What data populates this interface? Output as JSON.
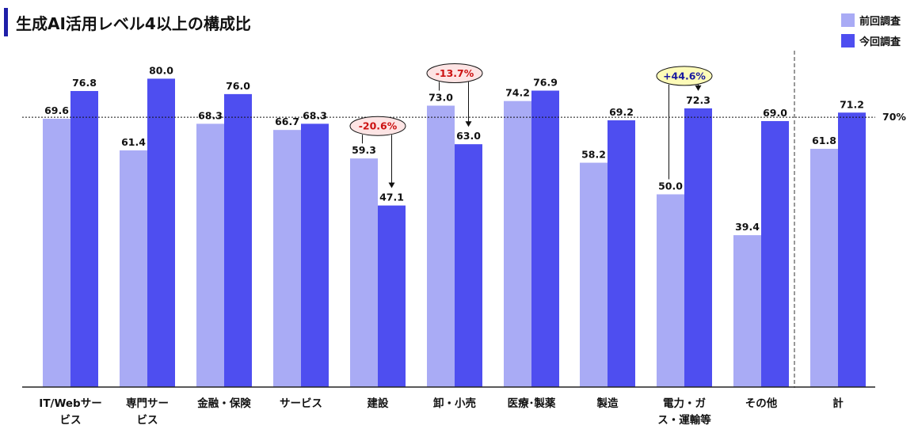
{
  "title": "生成AI活用レベル4以上の構成比",
  "legend": [
    {
      "label": "前回調査",
      "color": "#a9abf5"
    },
    {
      "label": "今回調査",
      "color": "#4e4ef0"
    }
  ],
  "chart_data": {
    "type": "bar",
    "categories": [
      [
        "IT/Webサー",
        "ビス"
      ],
      [
        "専門サー",
        "ビス"
      ],
      [
        "金融・保険"
      ],
      [
        "サービス"
      ],
      [
        "建設"
      ],
      [
        "卸・小売"
      ],
      [
        "医療･製薬"
      ],
      [
        "製造"
      ],
      [
        "電力・ガ",
        "ス・運輸等"
      ],
      [
        "その他"
      ],
      [
        "計"
      ]
    ],
    "series": [
      {
        "name": "前回調査",
        "values": [
          69.6,
          61.4,
          68.3,
          66.7,
          59.3,
          73.0,
          74.2,
          58.2,
          50.0,
          39.4,
          61.8
        ],
        "labels": [
          "69.6",
          "61.4",
          "68.3",
          "66.7",
          "59.3",
          "73.0",
          "74.2",
          "58.2",
          "50.0",
          "39.4",
          "61.8"
        ]
      },
      {
        "name": "今回調査",
        "values": [
          76.8,
          80.0,
          76.0,
          68.3,
          47.1,
          63.0,
          76.9,
          69.2,
          72.3,
          69.0,
          71.2
        ],
        "labels": [
          "76.8",
          "80.0",
          "76.0",
          "68.3",
          "47.1",
          "63.0",
          "76.9",
          "69.2",
          "72.3",
          "69.0",
          "71.2"
        ]
      }
    ],
    "ylim": [
      0,
      87
    ],
    "reference_line": {
      "value": 70,
      "label": "70%"
    },
    "annotations": [
      {
        "category_index": 4,
        "text": "-20.6%",
        "direction": "down",
        "color": "#cc1111",
        "bg": "#fde4e4"
      },
      {
        "category_index": 5,
        "text": "-13.7%",
        "direction": "down",
        "color": "#cc1111",
        "bg": "#fde4e4"
      },
      {
        "category_index": 8,
        "text": "+44.6%",
        "direction": "up",
        "color": "#1a1aa0",
        "bg": "#fdfbb8"
      }
    ]
  }
}
